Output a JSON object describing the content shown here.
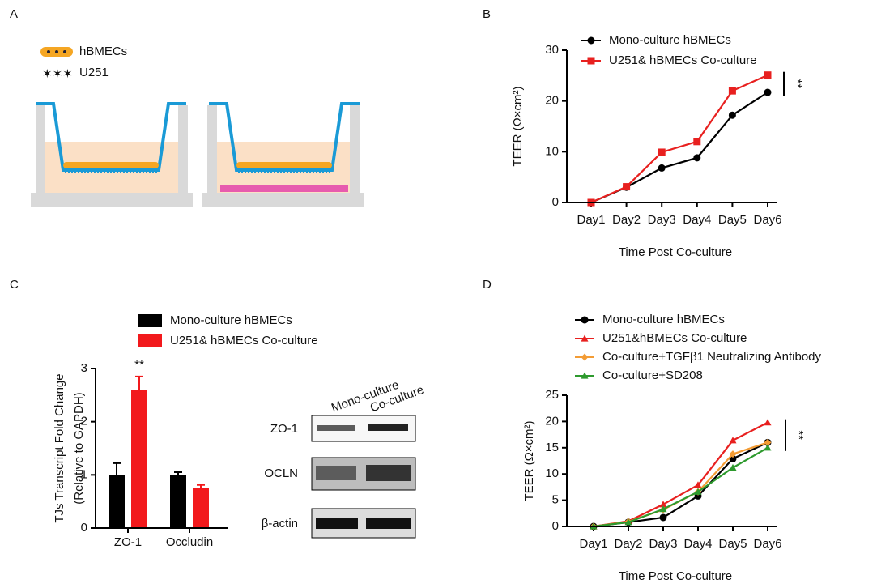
{
  "panels": [
    "A",
    "B",
    "C",
    "D"
  ],
  "diagram": {
    "legend": [
      "hBMECs",
      "U251"
    ]
  },
  "blot": {
    "columns": [
      "Mono-culture",
      "Co-culture"
    ],
    "rows": [
      "ZO-1",
      "OCLN",
      "β-actin"
    ]
  },
  "chart_data": [
    {
      "type": "line",
      "xlabel": "Time Post Co-culture",
      "ylabel": "TEER (Ω×cm²)",
      "categories": [
        "Day1",
        "Day2",
        "Day3",
        "Day4",
        "Day5",
        "Day6"
      ],
      "series": [
        {
          "name": "Mono-culture hBMECs",
          "color": "#000000",
          "marker": "circle",
          "values": [
            0,
            3,
            6.8,
            8.8,
            17.2,
            21.7
          ]
        },
        {
          "name": "U251& hBMECs Co-culture",
          "color": "#e8201f",
          "marker": "square",
          "values": [
            0,
            3.1,
            9.9,
            12,
            22,
            25.1
          ]
        }
      ],
      "ylim": [
        0,
        30
      ],
      "yticks": [
        0,
        10,
        20,
        30
      ],
      "annotation": "**"
    },
    {
      "type": "bar",
      "ylabel": [
        "TJs Transcript Fold Change",
        "(Relative to GAPDH)"
      ],
      "categories": [
        "ZO-1",
        "Occludin"
      ],
      "series": [
        {
          "name": "Mono-culture hBMECs",
          "color": "#000000",
          "values": [
            1.0,
            1.0
          ],
          "errors": [
            0.22,
            0.05
          ]
        },
        {
          "name": "U251& hBMECs Co-culture",
          "color": "#f2191c",
          "values": [
            2.6,
            0.75
          ],
          "errors": [
            0.25,
            0.06
          ]
        }
      ],
      "ylim": [
        0,
        3
      ],
      "yticks": [
        0,
        1,
        2,
        3
      ],
      "annotation": "**"
    },
    {
      "type": "line",
      "xlabel": "Time Post Co-culture",
      "ylabel": "TEER (Ω×cm²)",
      "categories": [
        "Day1",
        "Day2",
        "Day3",
        "Day4",
        "Day5",
        "Day6"
      ],
      "series": [
        {
          "name": "Mono-culture hBMECs",
          "color": "#000000",
          "marker": "circle",
          "values": [
            0,
            0.8,
            1.7,
            5.8,
            12.9,
            16
          ]
        },
        {
          "name": "U251&hBMECs Co-culture",
          "color": "#e8201f",
          "marker": "triangle",
          "values": [
            0,
            1,
            4.2,
            7.9,
            16.4,
            19.8
          ]
        },
        {
          "name": "Co-culture+TGFβ1 Neutralizing Antibody",
          "color": "#f39c35",
          "marker": "diamond",
          "values": [
            0,
            0.9,
            3.2,
            6.6,
            13.8,
            16
          ]
        },
        {
          "name": "Co-culture+SD208",
          "color": "#2e9a2e",
          "marker": "triangle",
          "values": [
            0,
            0.8,
            3.3,
            6.6,
            11.2,
            15
          ]
        }
      ],
      "ylim": [
        0,
        25
      ],
      "yticks": [
        0,
        5,
        10,
        15,
        20,
        25
      ],
      "annotation": "**"
    }
  ]
}
